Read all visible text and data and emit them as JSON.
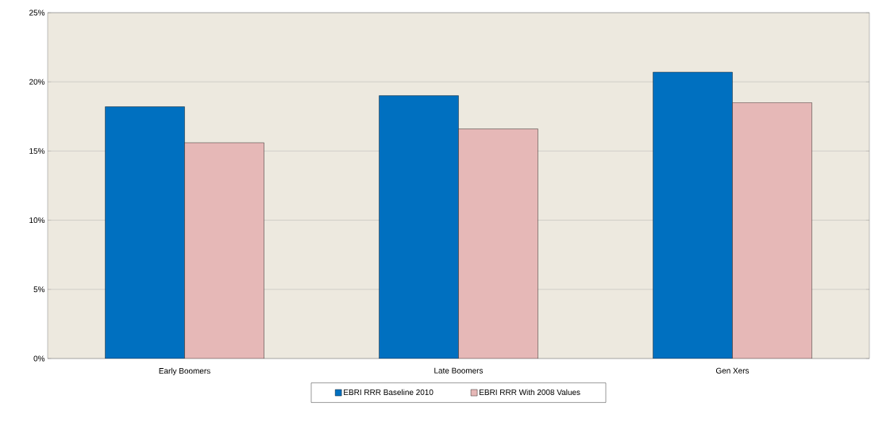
{
  "chart_data": {
    "type": "bar",
    "categories": [
      "Early Boomers",
      "Late Boomers",
      "Gen Xers"
    ],
    "series": [
      {
        "name": "EBRI RRR Baseline 2010",
        "color": "#0070c0",
        "values": [
          18.2,
          19.0,
          20.7
        ]
      },
      {
        "name": "EBRI RRR With 2008 Values",
        "color": "#e6b8b7",
        "values": [
          15.6,
          16.6,
          18.5
        ]
      }
    ],
    "ylim": [
      0,
      25
    ],
    "yticks": [
      {
        "value": 0,
        "label": "0%"
      },
      {
        "value": 5,
        "label": "5%"
      },
      {
        "value": 10,
        "label": "10%"
      },
      {
        "value": 15,
        "label": "15%"
      },
      {
        "value": 20,
        "label": "20%"
      },
      {
        "value": 25,
        "label": "25%"
      }
    ],
    "grid": "y",
    "legend": "bottom"
  }
}
